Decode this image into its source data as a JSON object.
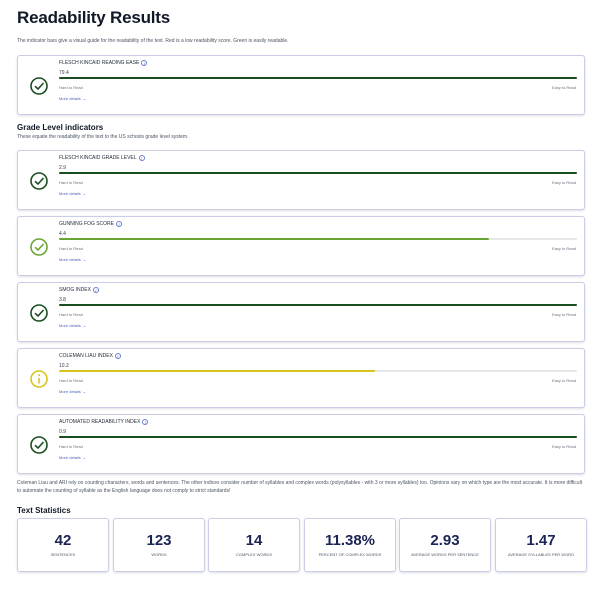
{
  "page": {
    "title": "Readability Results",
    "subtitle": "The indicator bars give a visual guide for the readability of the text. Red is a low readability score. Green is easily readable."
  },
  "labels": {
    "hard": "Hard to Read",
    "easy": "Easy to Read",
    "more": "More details"
  },
  "grade_section": {
    "title": "Grade Level indicators",
    "subtitle": "These equate the readability of the text to the US schools grade level system."
  },
  "indicators": [
    {
      "name": "FLESCH KINCAID READING EASE",
      "value": "79.4",
      "fill_fraction": 1.0,
      "color": "#1a4d1f",
      "status": "good"
    },
    {
      "name": "FLESCH KINCAID GRADE LEVEL",
      "value": "2.9",
      "fill_fraction": 1.0,
      "color": "#1a4d1f",
      "status": "good"
    },
    {
      "name": "GUNNING FOG SCORE",
      "value": "4.4",
      "fill_fraction": 0.83,
      "color": "#6aa533",
      "status": "ok"
    },
    {
      "name": "SMOG INDEX",
      "value": "3.8",
      "fill_fraction": 1.0,
      "color": "#1a4d1f",
      "status": "good"
    },
    {
      "name": "COLEMAN LIAU INDEX",
      "value": "10.2",
      "fill_fraction": 0.61,
      "color": "#d7c41c",
      "status": "warning"
    },
    {
      "name": "AUTOMATED READABILITY INDEX",
      "value": "0.9",
      "fill_fraction": 1.0,
      "color": "#1a4d1f",
      "status": "good"
    }
  ],
  "note": "Coleman Liau and ARI rely on counting characters, words and sentences. The other indices consider number of syllables and complex words (polysyllables - with 3 or more syllables) too. Opinions vary on which type are the most accurate. It is more difficult to automate the counting of syllable as the English language does not comply to strict standards!",
  "stats_section": {
    "title": "Text Statistics"
  },
  "stats": [
    {
      "value": "42",
      "label": "SENTENCES"
    },
    {
      "value": "123",
      "label": "WORDS"
    },
    {
      "value": "14",
      "label": "COMPLEX WORDS"
    },
    {
      "value": "11.38%",
      "label": "PERCENT OF COMPLEX WORDS"
    },
    {
      "value": "2.93",
      "label": "AVERAGE WORDS PER SENTENCE"
    },
    {
      "value": "1.47",
      "label": "AVERAGE SYLLABLES PER WORD"
    }
  ],
  "icons": {
    "good": "check-circle-icon",
    "warning": "info-circle-icon"
  }
}
